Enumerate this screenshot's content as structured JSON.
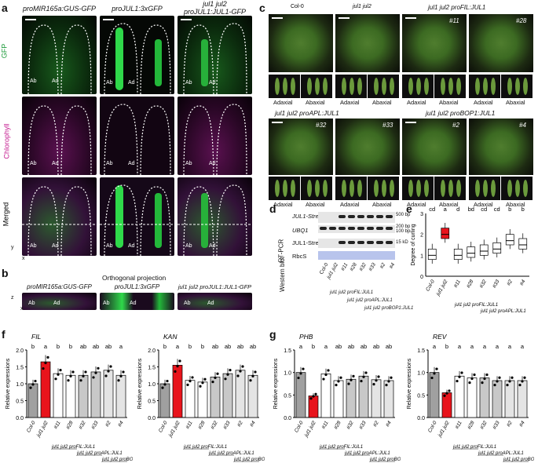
{
  "panel_a": {
    "label": "a",
    "columns": [
      "proMIR165a:GUS-GFP",
      "proJUL1:3xGFP",
      "jul1 jul2",
      "proJUL1:JUL1-GFP"
    ],
    "rows": [
      "GFP",
      "Chlorophyll",
      "Merged"
    ],
    "ab": "Ab",
    "ad": "Ad",
    "axis_y": "y",
    "axis_x": "x"
  },
  "panel_b": {
    "label": "b",
    "title": "Orthogonal projection",
    "columns": [
      "proMIR165a:GUS-GFP",
      "proJUL1:3xGFP",
      "jul1 jul2 proJUL1:JUL1-GFP"
    ],
    "ab": "Ab",
    "ad": "Ad",
    "axis_z": "z",
    "axis_x": "x"
  },
  "panel_c": {
    "label": "c",
    "row1": [
      "Col-0",
      "jul1 jul2",
      "jul1 jul2 proFIL:JUL1"
    ],
    "row2": [
      "jul1 jul2 proAPL:JUL1",
      "jul1 jul2 proBOP1:JUL1"
    ],
    "tags": [
      "#11",
      "#28",
      "#32",
      "#33",
      "#2",
      "#4"
    ],
    "adaxial": "Adaxial",
    "abaxial": "Abaxial"
  },
  "panel_d": {
    "label": "d",
    "rows": [
      "JUL1-StrepII",
      "UBQ1",
      "JUL1-StrepII",
      "RbcS"
    ],
    "groups": [
      "RT-PCR",
      "Western blot"
    ],
    "sizes": [
      "500 bp",
      "200 bp",
      "100 bp",
      "15 kD"
    ],
    "lanes": [
      "Col-0",
      "jul1 jul2",
      "#11",
      "#28",
      "#32",
      "#33",
      "#2",
      "#4"
    ],
    "constructs": [
      "jul1 jul2 proFIL:JUL1",
      "jul1 jul2 proAPL:JUL1",
      "jul1 jul2 proBOP1:JUL1"
    ]
  },
  "panel_e": {
    "label": "e",
    "chart_data": {
      "type": "box",
      "ylabel": "Degree of curling",
      "ylim": [
        0,
        3
      ],
      "yticks": [
        "0",
        "1",
        "2",
        "3"
      ],
      "categories": [
        "Col-0",
        "jul1 jul2",
        "#11",
        "#28",
        "#32",
        "#33",
        "#2",
        "#4"
      ],
      "medians": [
        1.0,
        2.0,
        1.0,
        1.1,
        1.2,
        1.3,
        1.7,
        1.5
      ],
      "letters": [
        "cd",
        "a",
        "d",
        "bd",
        "cd",
        "cd",
        "b",
        "b"
      ],
      "groups": [
        "jul1 jul2 proFIL:JUL1",
        "jul1 jul2 proAPL:JUL1",
        "jul1 jul2 proBOP1:JUL1"
      ]
    }
  },
  "panel_f": {
    "label": "f",
    "chart_data": [
      {
        "type": "bar",
        "title": "FIL",
        "ylabel": "Relative expressions",
        "ylim": [
          0,
          2
        ],
        "yticks": [
          "0.0",
          "0.5",
          "1.0",
          "1.5",
          "2.0"
        ],
        "categories": [
          "Col-0",
          "jul1 jul2",
          "#11",
          "#28",
          "#32",
          "#33",
          "#2",
          "#4"
        ],
        "values": [
          1.0,
          1.65,
          1.3,
          1.25,
          1.25,
          1.35,
          1.4,
          1.25
        ],
        "letters": [
          "b",
          "a",
          "b",
          "b",
          "ab",
          "ab",
          "ab",
          "a"
        ]
      },
      {
        "type": "bar",
        "title": "KAN",
        "ylabel": "Relative expressions",
        "ylim": [
          0,
          2
        ],
        "yticks": [
          "0.0",
          "0.5",
          "1.0",
          "1.5",
          "2.0"
        ],
        "categories": [
          "Col-0",
          "jul1 jul2",
          "#11",
          "#28",
          "#32",
          "#33",
          "#2",
          "#4"
        ],
        "values": [
          1.0,
          1.55,
          1.1,
          1.05,
          1.2,
          1.3,
          1.4,
          1.25
        ],
        "letters": [
          "b",
          "a",
          "b",
          "b",
          "ab",
          "ab",
          "ab",
          "ab"
        ]
      }
    ],
    "groups": [
      "jul1 jul2 proFIL:JUL1",
      "jul1 jul2 proAPL:JUL1",
      "jul1 jul2 proBOP1:JUL1"
    ]
  },
  "panel_g": {
    "label": "g",
    "chart_data": [
      {
        "type": "bar",
        "title": "PHB",
        "ylabel": "Relative expressions",
        "ylim": [
          0,
          1.5
        ],
        "yticks": [
          "0.0",
          "0.5",
          "1.0",
          "1.5"
        ],
        "categories": [
          "Col-0",
          "jul1 jul2",
          "#11",
          "#28",
          "#32",
          "#33",
          "#2",
          "#4"
        ],
        "values": [
          1.0,
          0.48,
          0.97,
          0.82,
          0.85,
          0.92,
          0.84,
          0.82
        ],
        "letters": [
          "a",
          "b",
          "a",
          "ab",
          "ab",
          "ab",
          "ab",
          "ab"
        ]
      },
      {
        "type": "bar",
        "title": "REV",
        "ylabel": "Relative expressions",
        "ylim": [
          0,
          1.5
        ],
        "yticks": [
          "0.0",
          "0.5",
          "1.0",
          "1.5"
        ],
        "categories": [
          "Col-0",
          "jul1 jul2",
          "#11",
          "#28",
          "#32",
          "#33",
          "#2",
          "#4"
        ],
        "values": [
          1.0,
          0.55,
          0.92,
          0.88,
          0.88,
          0.82,
          0.82,
          0.82
        ],
        "letters": [
          "a",
          "b",
          "a",
          "a",
          "a",
          "a",
          "a",
          "a"
        ]
      }
    ],
    "groups": [
      "jul1 jul2 proFIL:JUL1",
      "jul1 jul2 proAPL:JUL1",
      "jul1 jul2 proBOP1:JUL1"
    ]
  },
  "colors": {
    "col0": "#a0a0a0",
    "mutant": "#e8141c",
    "fil": "#ffffff",
    "apl": "#c8c8c8",
    "bop": "#e4e4e4",
    "box_red": "#e8141c"
  }
}
